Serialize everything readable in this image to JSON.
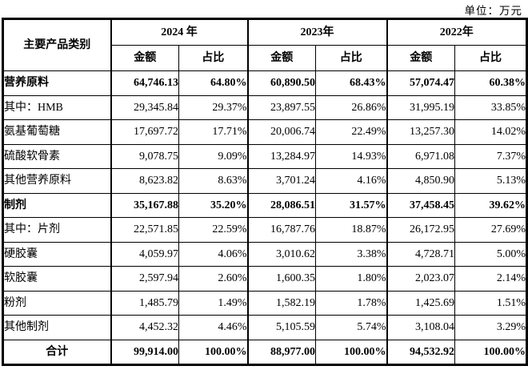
{
  "unit_label": "单位：万元",
  "colors": {
    "background": "#ffffff",
    "border": "#000000",
    "text": "#000000"
  },
  "table": {
    "col_header": "主要产品类别",
    "year_groups": [
      "2024 年",
      "2023年",
      "2022年"
    ],
    "sub_headers": {
      "amount": "金额",
      "ratio": "占比"
    },
    "rows": [
      {
        "label": "营养原料",
        "bold": true,
        "cells": [
          "64,746.13",
          "64.80%",
          "60,890.50",
          "68.43%",
          "57,074.47",
          "60.38%"
        ]
      },
      {
        "label": "其中：HMB",
        "bold": false,
        "cells": [
          "29,345.84",
          "29.37%",
          "23,897.55",
          "26.86%",
          "31,995.19",
          "33.85%"
        ]
      },
      {
        "label": "氨基葡萄糖",
        "bold": false,
        "cells": [
          "17,697.72",
          "17.71%",
          "20,006.74",
          "22.49%",
          "13,257.30",
          "14.02%"
        ]
      },
      {
        "label": "硫酸软骨素",
        "bold": false,
        "cells": [
          "9,078.75",
          "9.09%",
          "13,284.97",
          "14.93%",
          "6,971.08",
          "7.37%"
        ]
      },
      {
        "label": "其他营养原料",
        "bold": false,
        "cells": [
          "8,623.82",
          "8.63%",
          "3,701.24",
          "4.16%",
          "4,850.90",
          "5.13%"
        ]
      },
      {
        "label": "制剂",
        "bold": true,
        "cells": [
          "35,167.88",
          "35.20%",
          "28,086.51",
          "31.57%",
          "37,458.45",
          "39.62%"
        ]
      },
      {
        "label": "其中：片剂",
        "bold": false,
        "cells": [
          "22,571.85",
          "22.59%",
          "16,787.76",
          "18.87%",
          "26,172.95",
          "27.69%"
        ]
      },
      {
        "label": "硬胶囊",
        "bold": false,
        "cells": [
          "4,059.97",
          "4.06%",
          "3,010.62",
          "3.38%",
          "4,728.71",
          "5.00%"
        ]
      },
      {
        "label": "软胶囊",
        "bold": false,
        "cells": [
          "2,597.94",
          "2.60%",
          "1,600.35",
          "1.80%",
          "2,023.07",
          "2.14%"
        ]
      },
      {
        "label": "粉剂",
        "bold": false,
        "cells": [
          "1,485.79",
          "1.49%",
          "1,582.19",
          "1.78%",
          "1,425.69",
          "1.51%"
        ]
      },
      {
        "label": "其他制剂",
        "bold": false,
        "cells": [
          "4,452.32",
          "4.46%",
          "5,105.59",
          "5.74%",
          "3,108.04",
          "3.29%"
        ]
      },
      {
        "label": "合计",
        "bold": true,
        "label_align": "center",
        "cells": [
          "99,914.00",
          "100.00%",
          "88,977.00",
          "100.00%",
          "94,532.92",
          "100.00%"
        ]
      }
    ]
  }
}
